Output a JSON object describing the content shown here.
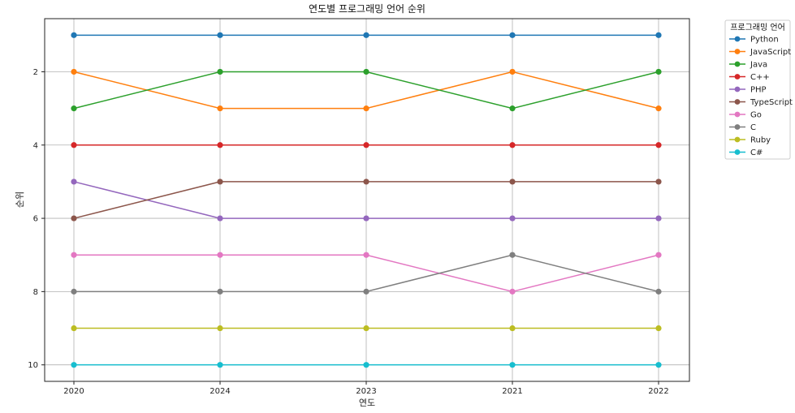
{
  "chart_data": {
    "type": "line",
    "title": "연도별 프로그래밍 언어 순위",
    "xlabel": "연도",
    "ylabel": "순위",
    "categories": [
      "2020",
      "2024",
      "2023",
      "2021",
      "2022"
    ],
    "y_ticks": [
      "2",
      "4",
      "6",
      "8",
      "10"
    ],
    "ylim": [
      10.45,
      0.55
    ],
    "y_inverted": true,
    "grid": true,
    "legend": {
      "title": "프로그래밍 언어",
      "placement": "outside-top-right"
    },
    "series": [
      {
        "name": "Python",
        "color": "#1f77b4",
        "values": [
          1,
          1,
          1,
          1,
          1
        ]
      },
      {
        "name": "JavaScript",
        "color": "#ff7f0e",
        "values": [
          2,
          3,
          3,
          2,
          3
        ]
      },
      {
        "name": "Java",
        "color": "#2ca02c",
        "values": [
          3,
          2,
          2,
          3,
          2
        ]
      },
      {
        "name": "C++",
        "color": "#d62728",
        "values": [
          4,
          4,
          4,
          4,
          4
        ]
      },
      {
        "name": "PHP",
        "color": "#9467bd",
        "values": [
          5,
          6,
          6,
          6,
          6
        ]
      },
      {
        "name": "TypeScript",
        "color": "#8c564b",
        "values": [
          6,
          5,
          5,
          5,
          5
        ]
      },
      {
        "name": "Go",
        "color": "#e377c2",
        "values": [
          7,
          7,
          7,
          8,
          7
        ]
      },
      {
        "name": "C",
        "color": "#7f7f7f",
        "values": [
          8,
          8,
          8,
          7,
          8
        ]
      },
      {
        "name": "Ruby",
        "color": "#bcbd22",
        "values": [
          9,
          9,
          9,
          9,
          9
        ]
      },
      {
        "name": "C#",
        "color": "#17becf",
        "values": [
          10,
          10,
          10,
          10,
          10
        ]
      }
    ]
  }
}
